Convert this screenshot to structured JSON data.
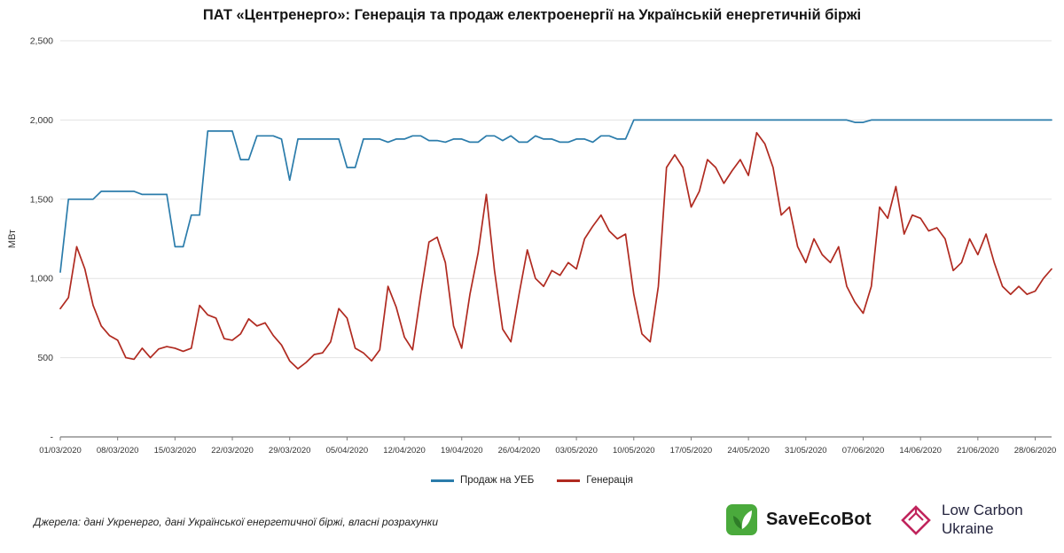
{
  "title": "ПАТ «Центренерго»: Генерація та продаж електроенергії на Українській енергетичній біржі",
  "chart_data": {
    "type": "line",
    "title": "ПАТ «Центренерго»: Генерація та продаж електроенергії на Українській енергетичній біржі",
    "xlabel": "",
    "ylabel": "МВт",
    "ylim": [
      0,
      2500
    ],
    "grid": "horizontal",
    "legend_position": "bottom",
    "yticks": [
      {
        "value": 0,
        "label": "-"
      },
      {
        "value": 500,
        "label": "500"
      },
      {
        "value": 1000,
        "label": "1,000"
      },
      {
        "value": 1500,
        "label": "1,500"
      },
      {
        "value": 2000,
        "label": "2,000"
      },
      {
        "value": 2500,
        "label": "2,500"
      }
    ],
    "x_tick_every": 7,
    "x_tick_labels": [
      "01/03/2020",
      "08/03/2020",
      "15/03/2020",
      "22/03/2020",
      "29/03/2020",
      "05/04/2020",
      "12/04/2020",
      "19/04/2020",
      "26/04/2020",
      "03/05/2020",
      "10/05/2020",
      "17/05/2020",
      "24/05/2020",
      "31/05/2020",
      "07/06/2020",
      "14/06/2020",
      "21/06/2020",
      "28/06/2020"
    ],
    "series": [
      {
        "name": "Продаж на УЕБ",
        "color": "#2b7cab",
        "values": [
          1040,
          1500,
          1500,
          1500,
          1500,
          1550,
          1550,
          1550,
          1550,
          1550,
          1530,
          1530,
          1530,
          1530,
          1200,
          1200,
          1400,
          1400,
          1930,
          1930,
          1930,
          1930,
          1750,
          1750,
          1900,
          1900,
          1900,
          1880,
          1620,
          1880,
          1880,
          1880,
          1880,
          1880,
          1880,
          1700,
          1700,
          1880,
          1880,
          1880,
          1860,
          1880,
          1880,
          1900,
          1900,
          1870,
          1870,
          1860,
          1880,
          1880,
          1860,
          1860,
          1900,
          1900,
          1870,
          1900,
          1860,
          1860,
          1900,
          1880,
          1880,
          1860,
          1860,
          1880,
          1880,
          1860,
          1900,
          1900,
          1880,
          1880,
          2000,
          2000,
          2000,
          2000,
          2000,
          2000,
          2000,
          2000,
          2000,
          2000,
          2000,
          2000,
          2000,
          2000,
          2000,
          2000,
          2000,
          2000,
          2000,
          2000,
          2000,
          2000,
          2000,
          2000,
          2000,
          2000,
          2000,
          1985,
          1985,
          2000,
          2000,
          2000,
          2000,
          2000,
          2000,
          2000,
          2000,
          2000,
          2000,
          2000,
          2000,
          2000,
          2000,
          2000,
          2000,
          2000,
          2000,
          2000,
          2000,
          2000,
          2000,
          2000
        ]
      },
      {
        "name": "Генерація",
        "color": "#b02a20",
        "values": [
          810,
          880,
          1200,
          1060,
          830,
          700,
          640,
          610,
          500,
          490,
          560,
          500,
          555,
          570,
          560,
          540,
          560,
          830,
          770,
          750,
          620,
          610,
          650,
          745,
          700,
          720,
          640,
          580,
          480,
          430,
          470,
          520,
          530,
          600,
          810,
          750,
          560,
          530,
          480,
          550,
          950,
          820,
          630,
          550,
          900,
          1230,
          1260,
          1100,
          700,
          560,
          900,
          1160,
          1530,
          1050,
          680,
          600,
          900,
          1180,
          1000,
          950,
          1050,
          1020,
          1100,
          1060,
          1250,
          1330,
          1400,
          1300,
          1250,
          1280,
          900,
          650,
          600,
          950,
          1700,
          1780,
          1700,
          1450,
          1550,
          1750,
          1700,
          1600,
          1680,
          1750,
          1650,
          1920,
          1850,
          1700,
          1400,
          1450,
          1200,
          1100,
          1250,
          1150,
          1100,
          1200,
          950,
          850,
          780,
          950,
          1450,
          1380,
          1580,
          1280,
          1400,
          1380,
          1300,
          1320,
          1250,
          1050,
          1100,
          1250,
          1150,
          1280,
          1100,
          950,
          900,
          950,
          900,
          920,
          1000,
          1060
        ]
      }
    ]
  },
  "footer": {
    "sources": "Джерела: дані Укренерго, дані Української енергетичної біржі, власні розрахунки"
  },
  "logos": {
    "saveecobot": "SaveEcoBot",
    "lowcarbon_line1": "Low Carbon",
    "lowcarbon_line2": "Ukraine"
  },
  "colors": {
    "sales_line": "#2b7cab",
    "generation_line": "#b02a20",
    "grid": "#e3e3e3",
    "axis": "#7a7a7a",
    "saveecobot_green": "#4aaa3c",
    "lowcarbon_crimson": "#c0245c"
  }
}
